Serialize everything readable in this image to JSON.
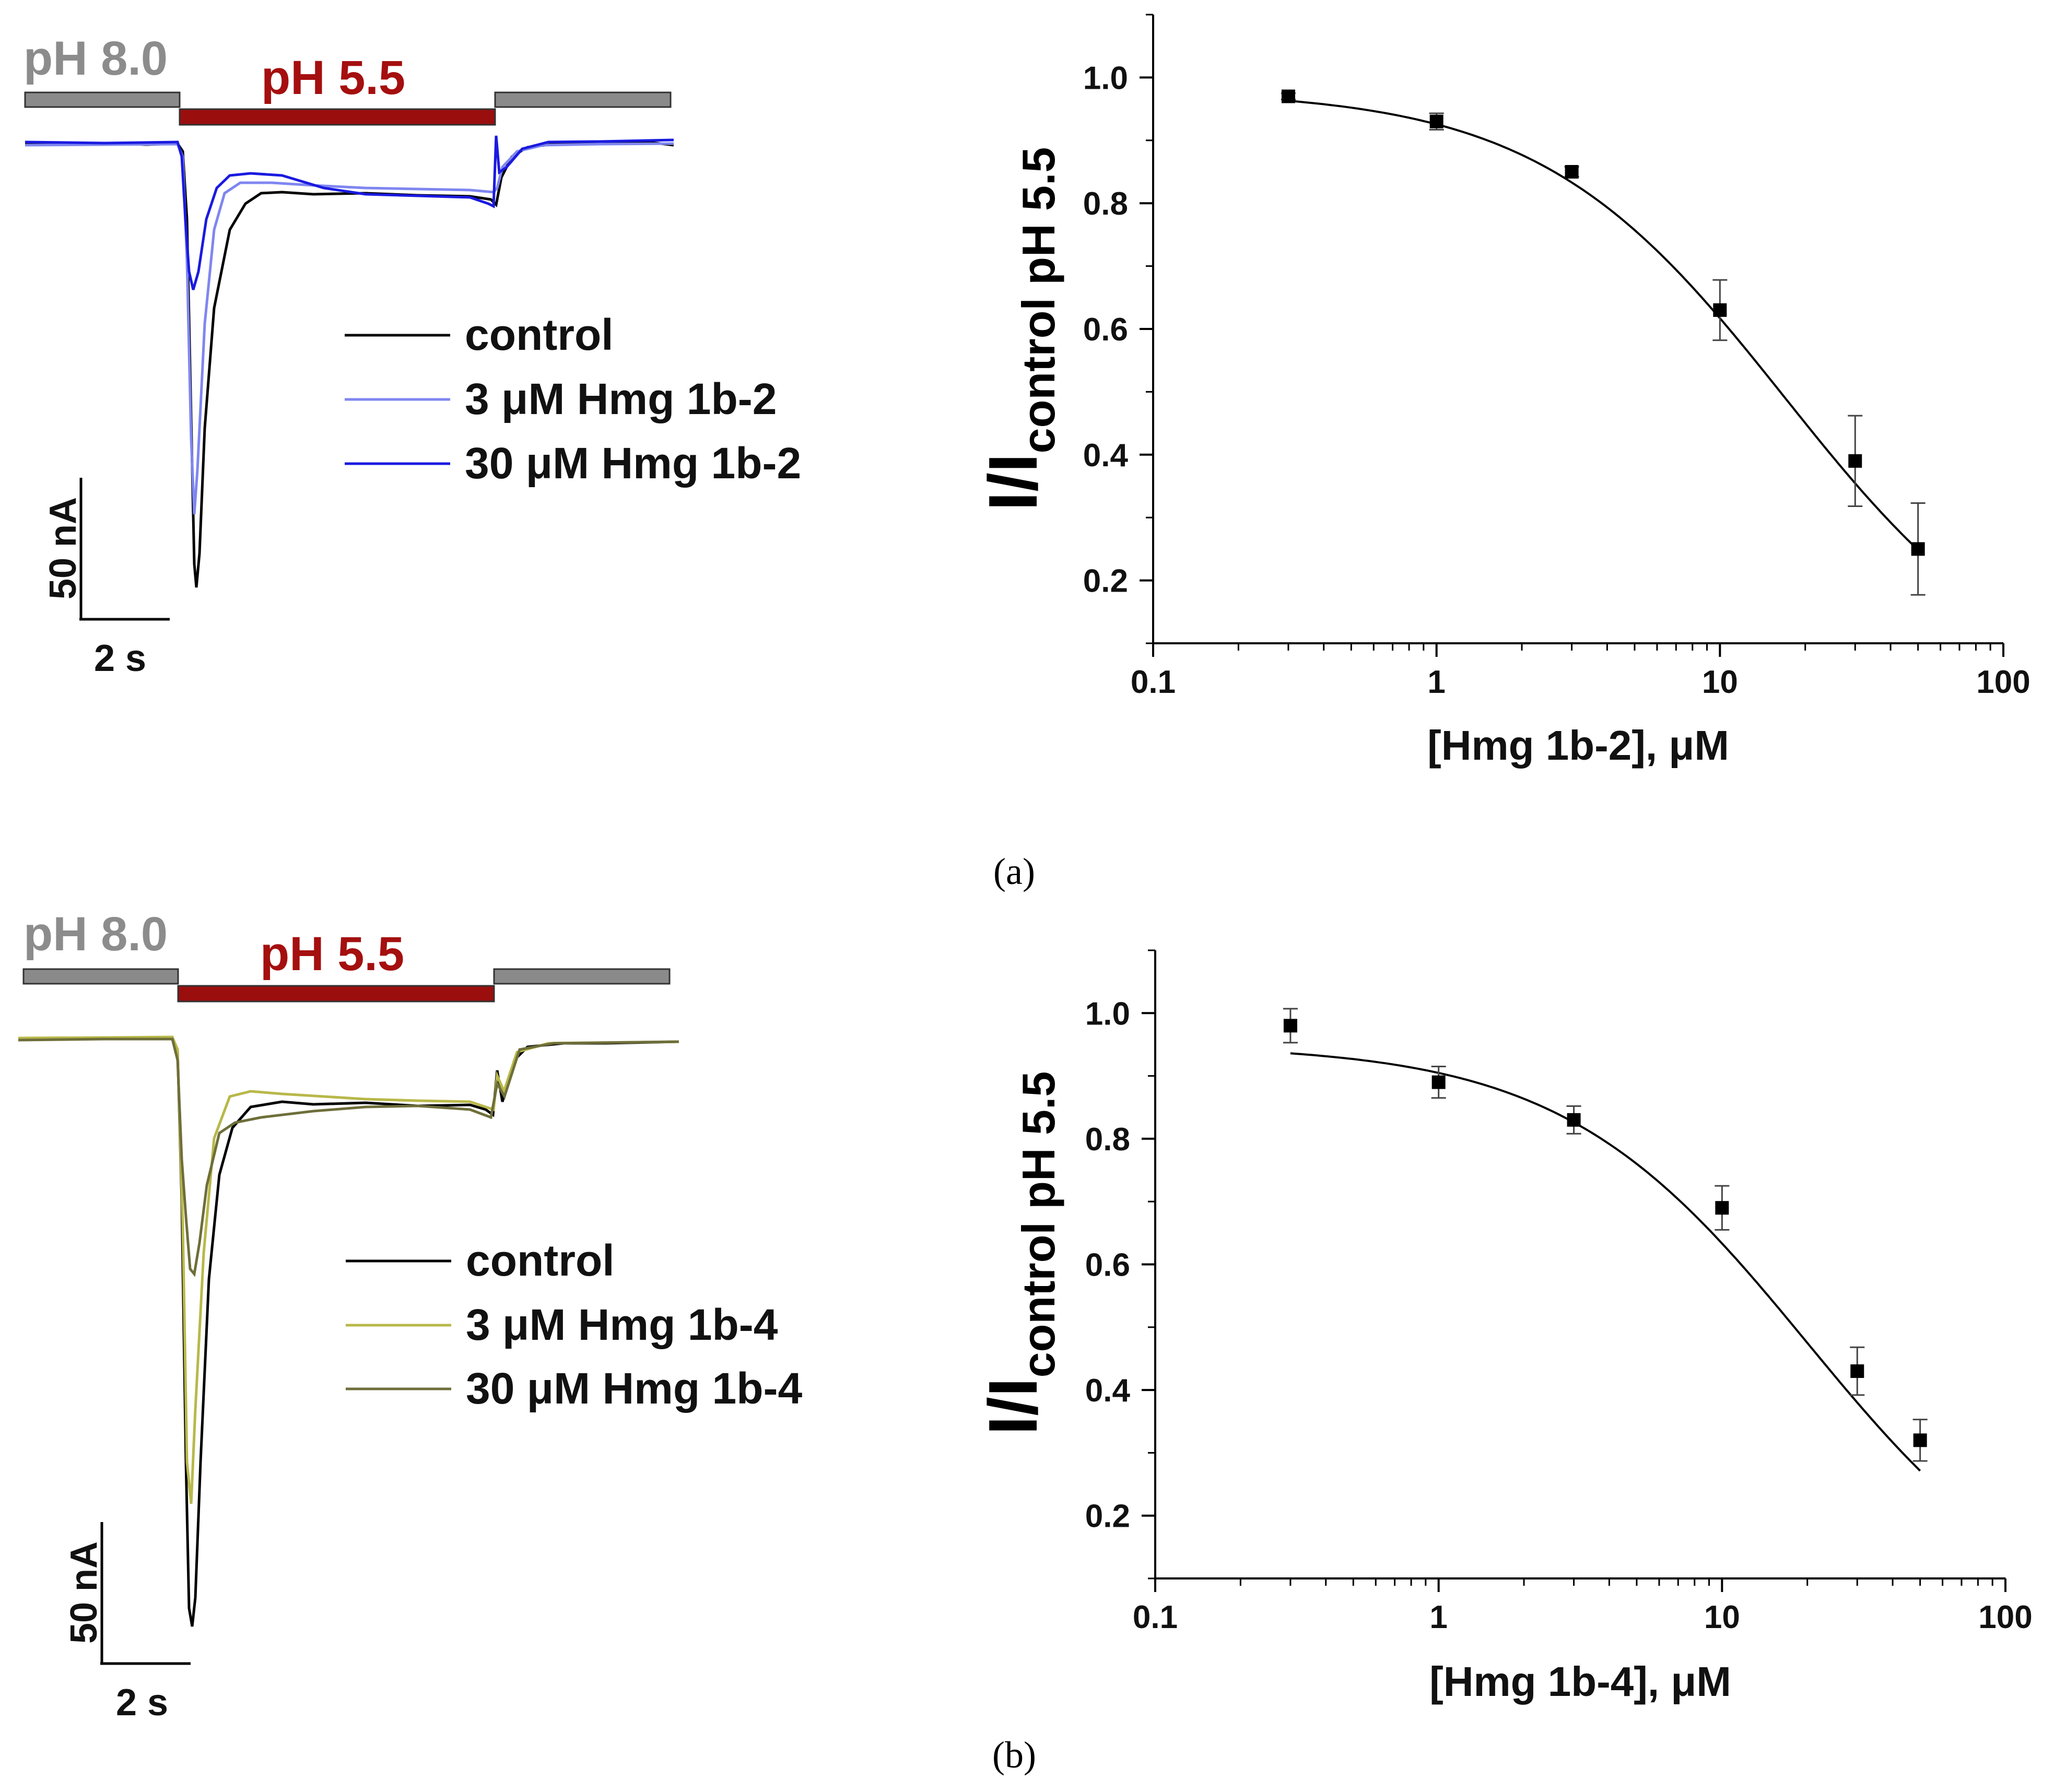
{
  "panels": [
    {
      "id": "a",
      "label": "(a)",
      "ph_bars": {
        "pre_label": "pH 8.0",
        "acid_label": "pH 5.5"
      },
      "scale_bar": {
        "current_label": "50 nA",
        "time_label": "2 s"
      },
      "legend": [
        {
          "label": "control",
          "color": "#000000"
        },
        {
          "label": "3 μM Hmg 1b-2",
          "color": "#7f86f0"
        },
        {
          "label": "30 μM Hmg 1b-2",
          "color": "#1a1ae0"
        }
      ]
    },
    {
      "id": "b",
      "label": "(b)",
      "ph_bars": {
        "pre_label": "pH 8.0",
        "acid_label": "pH 5.5"
      },
      "scale_bar": {
        "current_label": "50 nA",
        "time_label": "2 s"
      },
      "legend": [
        {
          "label": "control",
          "color": "#000000"
        },
        {
          "label": "3 μM Hmg 1b-4",
          "color": "#b8b84a"
        },
        {
          "label": "30 μM Hmg 1b-4",
          "color": "#6e6e3a"
        }
      ]
    }
  ],
  "colors": {
    "ph_neutral": "#8c8c8c",
    "ph_acid": "#a50f0f",
    "bar_neutral_fill": "#8a8a8a",
    "bar_acid_fill": "#9b0e0e"
  },
  "chart_data": [
    {
      "type": "scatter",
      "panel": "a",
      "title": "",
      "xlabel": "[Hmg 1b-2], μM",
      "ylabel_main": "I/I",
      "ylabel_sub": "control pH 5.5",
      "xscale": "log",
      "xlim": [
        0.1,
        100
      ],
      "ylim": [
        0.1,
        1.1
      ],
      "xticks": [
        0.1,
        1,
        10,
        100
      ],
      "xtick_labels": [
        "0.1",
        "1",
        "10",
        "100"
      ],
      "yticks": [
        0.2,
        0.4,
        0.6,
        0.8,
        1.0
      ],
      "ytick_labels": [
        "0.2",
        "0.4",
        "0.6",
        "0.8",
        "1.0"
      ],
      "x": [
        0.3,
        1,
        3,
        10,
        30,
        50
      ],
      "y": [
        0.97,
        0.93,
        0.85,
        0.63,
        0.39,
        0.25
      ],
      "err": [
        0.005,
        0.013,
        0.008,
        0.048,
        0.072,
        0.073
      ],
      "fit": {
        "type": "hill",
        "top": 0.98,
        "bottom": 0.0,
        "ic50": 17,
        "n": 1.0
      },
      "grid": false,
      "legend": false
    },
    {
      "type": "scatter",
      "panel": "b",
      "title": "",
      "xlabel": "[Hmg 1b-4], μM",
      "ylabel_main": "I/I",
      "ylabel_sub": "control pH 5.5",
      "xscale": "log",
      "xlim": [
        0.1,
        100
      ],
      "ylim": [
        0.1,
        1.1
      ],
      "xticks": [
        0.1,
        1,
        10,
        100
      ],
      "xtick_labels": [
        "0.1",
        "1",
        "10",
        "100"
      ],
      "yticks": [
        0.2,
        0.4,
        0.6,
        0.8,
        1.0
      ],
      "ytick_labels": [
        "0.2",
        "0.4",
        "0.6",
        "0.8",
        "1.0"
      ],
      "x": [
        0.3,
        1,
        3,
        10,
        30,
        50
      ],
      "y": [
        0.98,
        0.89,
        0.83,
        0.69,
        0.43,
        0.32
      ],
      "err": [
        0.027,
        0.025,
        0.022,
        0.035,
        0.038,
        0.033
      ],
      "fit": {
        "type": "hill",
        "top": 0.95,
        "bottom": 0.0,
        "ic50": 20,
        "n": 1.0
      },
      "grid": false,
      "legend": false
    }
  ]
}
